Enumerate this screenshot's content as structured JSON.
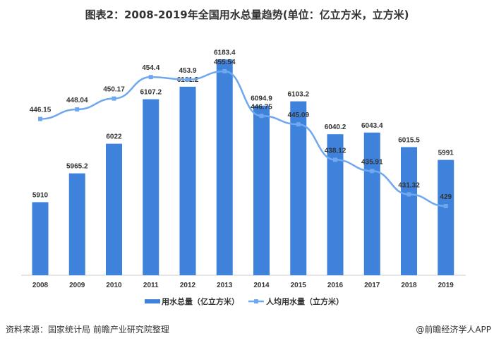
{
  "title": "图表2：2008-2019年全国用水总量趋势(单位：亿立方米，立方米)",
  "source": "资料来源：国家统计局 前瞻产业研究院整理",
  "credit": "@前瞻经济学人APP",
  "chart_data": {
    "type": "bar+line",
    "categories": [
      "2008",
      "2009",
      "2010",
      "2011",
      "2012",
      "2013",
      "2014",
      "2015",
      "2016",
      "2017",
      "2018",
      "2019"
    ],
    "series": [
      {
        "name": "用水总量（亿立方米）",
        "type": "bar",
        "color": "#3f82dc",
        "values": [
          5910,
          5965.2,
          6022,
          6107.2,
          6131.2,
          6183.4,
          6094.9,
          6103.2,
          6040.2,
          6043.4,
          6015.5,
          5991
        ],
        "labels": [
          "5910",
          "5965.2",
          "6022",
          "6107.2",
          "6131.2",
          "6183.4",
          "6094.9",
          "6103.2",
          "6040.2",
          "6043.4",
          "6015.5",
          "5991"
        ],
        "ylim": [
          5770,
          6250
        ]
      },
      {
        "name": "人均用水量（立方米）",
        "type": "line",
        "color": "#6fa8ef",
        "values": [
          446.15,
          448.04,
          450.17,
          454.4,
          453.9,
          455.54,
          446.75,
          445.09,
          438.12,
          435.91,
          431.32,
          429
        ],
        "labels": [
          "446.15",
          "448.04",
          "450.17",
          "454.4",
          "453.9",
          "455.54",
          "446.75",
          "445.09",
          "438.12",
          "435.91",
          "431.32",
          "429"
        ],
        "ylim": [
          415.4,
          464.7
        ]
      }
    ],
    "legend": "bottom",
    "grid": false
  }
}
